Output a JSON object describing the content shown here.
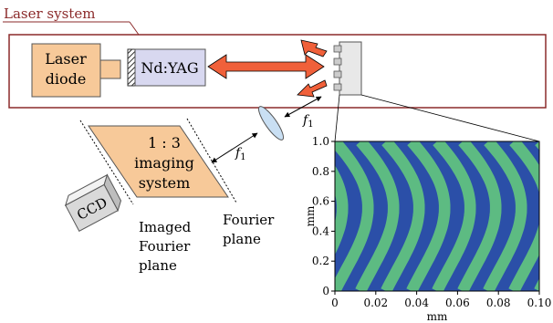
{
  "laser_system": {
    "title": "Laser system",
    "diode_label": [
      "Laser",
      "diode"
    ],
    "crystal_label": "Nd:YAG"
  },
  "imaging": {
    "system_label": [
      "1 : 3",
      "imaging",
      "system"
    ],
    "ccd_label": "CCD",
    "focal_label": "f",
    "focal_subscript": "1",
    "imaged_fourier_label": [
      "Imaged",
      "Fourier",
      "plane"
    ],
    "fourier_label": [
      "Fourier",
      "plane"
    ]
  },
  "colors": {
    "frame": "#8b2a2a",
    "diode_fill": "#f7c999",
    "crystal_fill": "#d8d8f0",
    "arrow": "#f0603a",
    "system_fill": "#f7c999",
    "lens": "#c9dff3",
    "stripe_blue": "#2b4fa8",
    "stripe_green": "#5dbb82"
  },
  "chart_data": {
    "type": "heatmap",
    "description_free": true,
    "xlabel": "mm",
    "ylabel": "mm",
    "xlim": [
      0,
      0.1
    ],
    "ylim": [
      0,
      1.0
    ],
    "xticks": [
      "0",
      "0.02",
      "0.04",
      "0.06",
      "0.08",
      "0.10"
    ],
    "yticks": [
      "0",
      "0.2",
      "0.4",
      "0.6",
      "0.8",
      "1.0"
    ],
    "stripe_count": 20
  }
}
